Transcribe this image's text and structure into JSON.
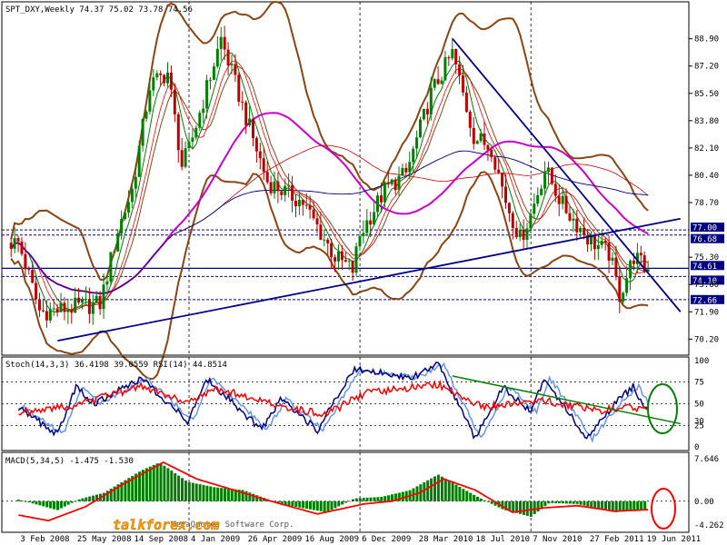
{
  "chart_header": {
    "symbol_timeframe": "SPT_DXY,Weekly",
    "ohlc": "74.37 75.02 73.78 74.56"
  },
  "stoch_header": {
    "stoch_label": "Stoch(14,3,3)",
    "stoch_values": "36.4198 39.0559",
    "rsi_label": "RSI(14)",
    "rsi_value": "44.8514"
  },
  "macd_header": {
    "label": "MACD(5,34,5)",
    "values": "-1.475 -1.530"
  },
  "watermark": {
    "site": "talkforex.com",
    "vendor": "MetaQuotes Software Corp."
  },
  "colors": {
    "bull": "#008000",
    "bear": "#c00000",
    "bollinger": "#8b4513",
    "magenta_ma": "#cc00cc",
    "long_ma": "#000080",
    "trendline": "#00008b",
    "stoch_main": "#000080",
    "stoch_signal": "#6495ed",
    "rsi": "#ff0000",
    "stoch_trend": "#008000",
    "macd_hist": "#008000",
    "macd_signal": "#ff0000"
  },
  "chart_data": [
    {
      "type": "candlestick",
      "title": "SPT_DXY,Weekly 74.37 75.02 73.78 74.56",
      "ylim": [
        69.2,
        91.2
      ],
      "y_ticks": [
        88.9,
        87.2,
        85.5,
        83.8,
        82.1,
        80.4,
        78.7,
        75.3,
        73.6,
        71.9,
        70.2
      ],
      "highlighted_levels": [
        {
          "value": 77.0,
          "label": "77.00"
        },
        {
          "value": 76.68,
          "label": "76.68"
        },
        {
          "value": 74.61,
          "label": "74.61"
        },
        {
          "value": 74.1,
          "label": "74.10"
        },
        {
          "value": 72.66,
          "label": "72.66"
        }
      ],
      "x_ticks": [
        "3 Feb 2008",
        "25 May 2008",
        "14 Sep 2008",
        "4 Jan 2009",
        "26 Apr 2009",
        "16 Aug 2009",
        "6 Dec 2009",
        "28 Mar 2010",
        "18 Jul 2010",
        "7 Nov 2010",
        "27 Feb 2011",
        "19 Jun 2011"
      ],
      "price_path": [
        {
          "date": "2008-02-03",
          "close": 76.2
        },
        {
          "date": "2008-03-16",
          "close": 71.9
        },
        {
          "date": "2008-04-20",
          "close": 72.0
        },
        {
          "date": "2008-05-25",
          "close": 72.2
        },
        {
          "date": "2008-07-13",
          "close": 72.4
        },
        {
          "date": "2008-08-17",
          "close": 77.0
        },
        {
          "date": "2008-09-14",
          "close": 79.5
        },
        {
          "date": "2008-10-19",
          "close": 86.0
        },
        {
          "date": "2008-11-23",
          "close": 86.8
        },
        {
          "date": "2008-12-21",
          "close": 81.0
        },
        {
          "date": "2009-01-04",
          "close": 82.0
        },
        {
          "date": "2009-03-08",
          "close": 88.9
        },
        {
          "date": "2009-04-26",
          "close": 84.0
        },
        {
          "date": "2009-06-07",
          "close": 80.0
        },
        {
          "date": "2009-08-16",
          "close": 78.7
        },
        {
          "date": "2009-10-18",
          "close": 75.3
        },
        {
          "date": "2009-11-22",
          "close": 74.5
        },
        {
          "date": "2009-12-06",
          "close": 76.7
        },
        {
          "date": "2010-01-24",
          "close": 79.5
        },
        {
          "date": "2010-03-07",
          "close": 80.5
        },
        {
          "date": "2010-04-25",
          "close": 85.5
        },
        {
          "date": "2010-06-06",
          "close": 88.0
        },
        {
          "date": "2010-07-18",
          "close": 82.8
        },
        {
          "date": "2010-08-22",
          "close": 82.1
        },
        {
          "date": "2010-09-19",
          "close": 78.8
        },
        {
          "date": "2010-10-17",
          "close": 76.4
        },
        {
          "date": "2010-11-07",
          "close": 78.0
        },
        {
          "date": "2010-12-05",
          "close": 80.8
        },
        {
          "date": "2011-01-09",
          "close": 78.5
        },
        {
          "date": "2011-02-27",
          "close": 76.5
        },
        {
          "date": "2011-04-10",
          "close": 75.5
        },
        {
          "date": "2011-05-01",
          "close": 72.9
        },
        {
          "date": "2011-05-29",
          "close": 75.4
        },
        {
          "date": "2011-06-19",
          "close": 74.6
        },
        {
          "date": "2011-07-03",
          "close": 74.56
        }
      ],
      "trendlines": [
        {
          "name": "support",
          "from": {
            "date": "2008-04-20",
            "value": 70.1
          },
          "to": {
            "date": "2011-08-28",
            "value": 77.7
          }
        },
        {
          "name": "resistance",
          "from": {
            "date": "2010-06-06",
            "value": 88.9
          },
          "to": {
            "date": "2011-08-28",
            "value": 71.9
          }
        }
      ]
    },
    {
      "type": "line",
      "title": "Stoch(14,3,3) 36.4198 39.0559 RSI(14) 44.8514",
      "ylim": [
        -4,
        104
      ],
      "y_ticks": [
        100,
        75,
        50,
        30,
        25,
        0
      ],
      "series": [
        {
          "name": "Stoch(14,3,3)",
          "path": [
            [
              2008.09,
              45
            ],
            [
              2008.3,
              15
            ],
            [
              2008.4,
              70
            ],
            [
              2008.5,
              50
            ],
            [
              2008.75,
              80
            ],
            [
              2009.0,
              30
            ],
            [
              2009.1,
              80
            ],
            [
              2009.4,
              20
            ],
            [
              2009.5,
              55
            ],
            [
              2009.7,
              20
            ],
            [
              2009.9,
              90
            ],
            [
              2010.2,
              80
            ],
            [
              2010.35,
              95
            ],
            [
              2010.55,
              10
            ],
            [
              2010.7,
              70
            ],
            [
              2010.85,
              40
            ],
            [
              2010.92,
              80
            ],
            [
              2011.15,
              10
            ],
            [
              2011.3,
              50
            ],
            [
              2011.4,
              70
            ],
            [
              2011.48,
              40
            ]
          ]
        },
        {
          "name": "RSI(14)",
          "path": [
            [
              2008.09,
              40
            ],
            [
              2008.4,
              48
            ],
            [
              2008.75,
              70
            ],
            [
              2009.0,
              52
            ],
            [
              2009.15,
              68
            ],
            [
              2009.55,
              45
            ],
            [
              2009.75,
              38
            ],
            [
              2009.95,
              62
            ],
            [
              2010.35,
              72
            ],
            [
              2010.6,
              46
            ],
            [
              2010.9,
              55
            ],
            [
              2011.2,
              42
            ],
            [
              2011.4,
              46
            ],
            [
              2011.48,
              44.85
            ]
          ]
        }
      ],
      "trendline": {
        "from": {
          "date": "2010-06-06",
          "value": 82
        },
        "to": {
          "date": "2011-08-28",
          "value": 27
        }
      }
    },
    {
      "type": "bar",
      "title": "MACD(5,34,5) -1.475 -1.530",
      "ylim": [
        -5.6,
        8.8
      ],
      "y_ticks": [
        7.646,
        0.0,
        -4.262
      ],
      "histogram_path": [
        [
          2008.09,
          0.3
        ],
        [
          2008.3,
          -1.6
        ],
        [
          2008.42,
          0.4
        ],
        [
          2008.55,
          1.5
        ],
        [
          2008.75,
          5.5
        ],
        [
          2008.85,
          7.0
        ],
        [
          2009.0,
          3.5
        ],
        [
          2009.15,
          2.5
        ],
        [
          2009.3,
          2.0
        ],
        [
          2009.5,
          -0.5
        ],
        [
          2009.75,
          -2.0
        ],
        [
          2009.9,
          0.5
        ],
        [
          2010.05,
          0.8
        ],
        [
          2010.2,
          2.0
        ],
        [
          2010.35,
          4.8
        ],
        [
          2010.55,
          1.0
        ],
        [
          2010.7,
          -1.5
        ],
        [
          2010.85,
          -2.8
        ],
        [
          2010.95,
          -0.3
        ],
        [
          2011.1,
          -0.5
        ],
        [
          2011.3,
          -2.0
        ],
        [
          2011.48,
          -1.5
        ]
      ],
      "signal_path": [
        [
          2008.09,
          -2.5
        ],
        [
          2008.25,
          -3.5
        ],
        [
          2008.45,
          -1.0
        ],
        [
          2008.65,
          3.0
        ],
        [
          2008.87,
          7.0
        ],
        [
          2009.05,
          4.0
        ],
        [
          2009.25,
          2.0
        ],
        [
          2009.45,
          0.0
        ],
        [
          2009.7,
          -2.3
        ],
        [
          2009.95,
          -0.5
        ],
        [
          2010.1,
          0.0
        ],
        [
          2010.25,
          1.5
        ],
        [
          2010.38,
          4.0
        ],
        [
          2010.55,
          2.0
        ],
        [
          2010.75,
          -2.0
        ],
        [
          2010.92,
          -1.2
        ],
        [
          2011.1,
          -0.8
        ],
        [
          2011.3,
          -1.8
        ],
        [
          2011.48,
          -1.53
        ]
      ]
    }
  ]
}
